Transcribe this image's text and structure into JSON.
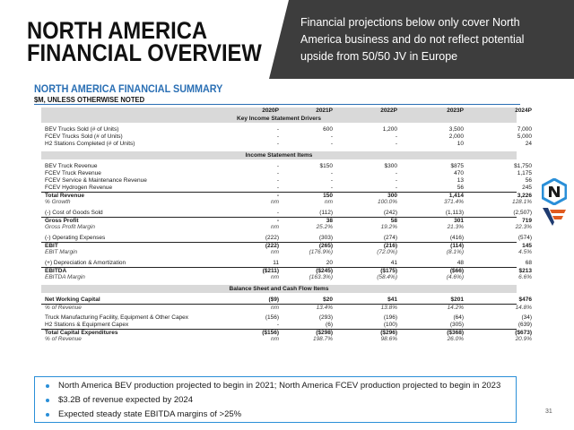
{
  "title": {
    "line1": "NORTH AMERICA",
    "line2": "FINANCIAL OVERVIEW"
  },
  "callout": "Financial projections below only cover North America business and do not reflect potential upside from 50/50 JV in Europe",
  "summary": {
    "title": "NORTH AMERICA FINANCIAL SUMMARY",
    "subtitle": "$M, UNLESS OTHERWISE NOTED"
  },
  "table": {
    "headers": [
      "2020P",
      "2021P",
      "2022P",
      "2023P",
      "2024P"
    ],
    "sections": {
      "key": "Key Income Statement Drivers",
      "income": "Income Statement Items",
      "balance": "Balance Sheet and Cash Flow Items"
    },
    "rows": {
      "bev_trucks": {
        "label": "BEV Trucks Sold (# of Units)",
        "v": [
          "-",
          "600",
          "1,200",
          "3,500",
          "7,000"
        ]
      },
      "fcev_trucks": {
        "label": "FCEV Trucks Sold (# of Units)",
        "v": [
          "-",
          "-",
          "-",
          "2,000",
          "5,000"
        ]
      },
      "h2_stations": {
        "label": "H2 Stations Completed (# of Units)",
        "v": [
          "-",
          "-",
          "-",
          "10",
          "24"
        ]
      },
      "bev_rev": {
        "label": "BEV Truck Revenue",
        "v": [
          "-",
          "$150",
          "$300",
          "$875",
          "$1,750"
        ]
      },
      "fcev_rev": {
        "label": "FCEV Truck Revenue",
        "v": [
          "-",
          "-",
          "-",
          "470",
          "1,175"
        ]
      },
      "fcev_service": {
        "label": "FCEV Service & Maintenance Revenue",
        "v": [
          "-",
          "-",
          "-",
          "13",
          "56"
        ]
      },
      "fcev_h2": {
        "label": "FCEV Hydrogen Revenue",
        "v": [
          "-",
          "-",
          "-",
          "56",
          "245"
        ]
      },
      "total_rev": {
        "label": "Total Revenue",
        "v": [
          "-",
          "150",
          "300",
          "1,414",
          "3,226"
        ]
      },
      "growth": {
        "label": "% Growth",
        "v": [
          "nm",
          "nm",
          "100.0%",
          "371.4%",
          "128.1%"
        ]
      },
      "cogs": {
        "label": "(-) Cost of Goods Sold",
        "v": [
          "-",
          "(112)",
          "(242)",
          "(1,113)",
          "(2,507)"
        ]
      },
      "gross_profit": {
        "label": "Gross Profit",
        "v": [
          "-",
          "38",
          "58",
          "301",
          "719"
        ]
      },
      "gross_margin": {
        "label": "Gross Profit Margin",
        "v": [
          "nm",
          "25.2%",
          "19.2%",
          "21.3%",
          "22.3%"
        ]
      },
      "opex": {
        "label": "(-) Operating Expenses",
        "v": [
          "(222)",
          "(303)",
          "(274)",
          "(416)",
          "(574)"
        ]
      },
      "ebit": {
        "label": "EBIT",
        "v": [
          "(222)",
          "(265)",
          "(216)",
          "(114)",
          "145"
        ]
      },
      "ebit_margin": {
        "label": "EBIT Margin",
        "v": [
          "nm",
          "(176.9%)",
          "(72.0%)",
          "(8.1%)",
          "4.5%"
        ]
      },
      "da": {
        "label": "(+) Depreciation & Amortization",
        "v": [
          "11",
          "20",
          "41",
          "48",
          "68"
        ]
      },
      "ebitda": {
        "label": "EBITDA",
        "v": [
          "($211)",
          "($245)",
          "($175)",
          "($66)",
          "$213"
        ]
      },
      "ebitda_margin": {
        "label": "EBITDA Margin",
        "v": [
          "nm",
          "(163.3%)",
          "(58.4%)",
          "(4.6%)",
          "6.6%"
        ]
      },
      "nwc": {
        "label": "Net Working Capital",
        "v": [
          "($9)",
          "$20",
          "$41",
          "$201",
          "$476"
        ]
      },
      "nwc_pct": {
        "label": "% of Revenue",
        "v": [
          "nm",
          "13.4%",
          "13.8%",
          "14.2%",
          "14.8%"
        ]
      },
      "capex_truck": {
        "label": "Truck Manufacturing Facility, Equipment & Other Capex",
        "v": [
          "(156)",
          "(293)",
          "(196)",
          "(64)",
          "(34)"
        ]
      },
      "capex_h2": {
        "label": "H2 Stations & Equipment Capex",
        "v": [
          "-",
          "(6)",
          "(100)",
          "(305)",
          "(639)"
        ]
      },
      "total_capex": {
        "label": "Total Capital Expenditures",
        "v": [
          "($156)",
          "($298)",
          "($296)",
          "($368)",
          "($673)"
        ]
      },
      "capex_pct": {
        "label": "% of Revenue",
        "v": [
          "nm",
          "198.7%",
          "98.6%",
          "26.0%",
          "20.9%"
        ]
      }
    }
  },
  "bullets": [
    "North America BEV production projected to begin in 2021; North America FCEV production projected to begin in 2023",
    "$3.2B of revenue expected by 2024",
    "Expected steady state EBITDA margins of >25%"
  ],
  "page_number": "31",
  "colors": {
    "accent": "#2a6fb4",
    "callout_bg": "#3d3d3d",
    "section_bg": "#d9d9d9",
    "bullet_border": "#2a8fd8"
  }
}
